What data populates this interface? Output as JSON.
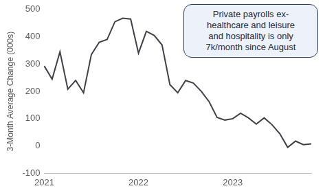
{
  "chart_data": {
    "type": "line",
    "y_label": "3-Month Average Change (000s)",
    "annotation": [
      "Private payrolls ex-",
      "healthcare and leisure",
      "and hospitality is only",
      "7k/month since August"
    ],
    "categories": [
      "2021",
      null,
      null,
      null,
      null,
      null,
      null,
      null,
      null,
      null,
      null,
      null,
      "2022",
      null,
      null,
      null,
      null,
      null,
      null,
      null,
      null,
      null,
      null,
      null,
      "2023",
      null,
      null,
      null,
      null,
      null,
      null,
      null,
      null,
      null,
      null
    ],
    "values": [
      293,
      245,
      345,
      208,
      240,
      195,
      335,
      380,
      390,
      455,
      468,
      465,
      340,
      420,
      405,
      370,
      225,
      195,
      240,
      230,
      200,
      162,
      105,
      95,
      100,
      120,
      103,
      80,
      103,
      78,
      45,
      -5,
      18,
      5,
      8
    ],
    "color": "#404048",
    "ylim": [
      -100,
      500
    ],
    "yticks": [
      -100,
      0,
      100,
      200,
      300,
      400,
      500
    ],
    "grid": false
  }
}
